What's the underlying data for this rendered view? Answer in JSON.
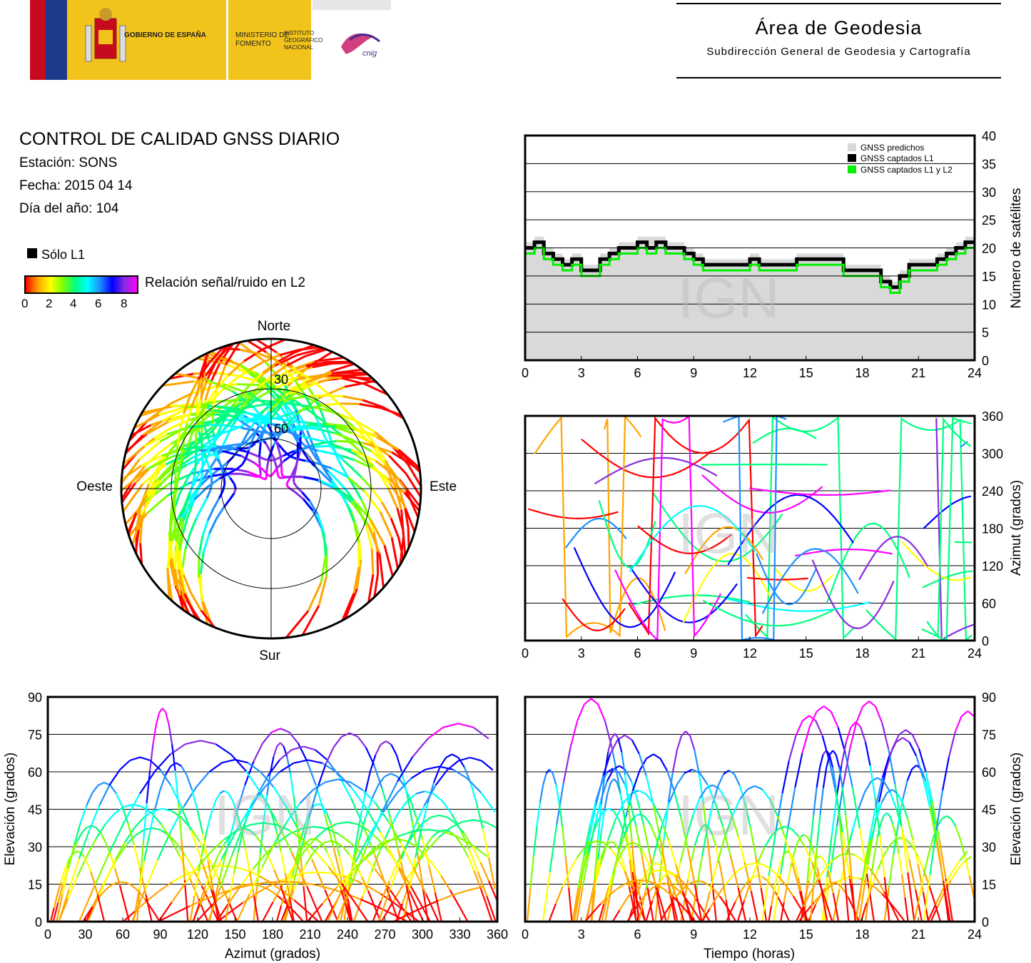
{
  "header": {
    "gobierno": "GOBIERNO DE ESPAÑA",
    "ministerio": "MINISTERIO DE FOMENTO",
    "instituto": "INSTITUTO GEOGRÁFICO NACIONAL",
    "cnig": "cnig",
    "area_title": "Área de Geodesia",
    "area_subtitle": "Subdirección General de Geodesia y Cartografía"
  },
  "info": {
    "title": "CONTROL DE CALIDAD GNSS DIARIO",
    "station": "Estación: SONS",
    "date": "Fecha: 2015 04 14",
    "doy": "Día del año: 104"
  },
  "legend": {
    "l1_only": "Sólo L1",
    "snr_label": "Relación señal/ruido en L2",
    "snr_ticks": [
      "0",
      "2",
      "4",
      "6",
      "8"
    ],
    "snr_colors": [
      "#ff0000",
      "#ffa500",
      "#ffff00",
      "#7fff00",
      "#00ff7f",
      "#00ffff",
      "#1e90ff",
      "#0000ff",
      "#8a2be2",
      "#ff00ff"
    ]
  },
  "watermark": "IGN",
  "chart_data": [
    {
      "type": "line",
      "panel": "satellites",
      "ylabel": "Número de satélites",
      "ylim": [
        0,
        40
      ],
      "xlim": [
        0,
        24
      ],
      "x_ticks": [
        "0",
        "3",
        "6",
        "9",
        "12",
        "15",
        "18",
        "21",
        "24"
      ],
      "y_ticks": [
        "0",
        "5",
        "10",
        "15",
        "20",
        "25",
        "30",
        "35",
        "40"
      ],
      "grid": true,
      "legend_position": "top-right",
      "legend": [
        "GNSS predichos",
        "GNSS captados L1",
        "GNSS captados L1 y L2"
      ],
      "series": [
        {
          "name": "GNSS predichos",
          "color": "#d9d9d9",
          "x": [
            0,
            0.5,
            1,
            1.5,
            2,
            2.5,
            3,
            3.5,
            4,
            4.5,
            5,
            5.5,
            6,
            6.5,
            7,
            7.5,
            8,
            8.5,
            9,
            9.5,
            10,
            10.5,
            11,
            11.5,
            12,
            12.5,
            13,
            13.5,
            14,
            14.5,
            15,
            15.5,
            16,
            16.5,
            17,
            17.5,
            18,
            18.5,
            19,
            19.5,
            20,
            20.5,
            21,
            21.5,
            22,
            22.5,
            23,
            23.5,
            24
          ],
          "y": [
            21,
            22,
            20,
            19,
            18,
            19,
            17,
            17,
            19,
            20,
            21,
            21,
            22,
            22,
            22,
            21,
            21,
            20,
            19,
            18,
            18,
            18,
            18,
            18,
            19,
            18,
            18,
            18,
            18,
            19,
            19,
            19,
            19,
            19,
            17,
            17,
            17,
            17,
            15,
            14,
            16,
            18,
            18,
            18,
            19,
            20,
            21,
            22,
            22
          ]
        },
        {
          "name": "GNSS captados L1",
          "color": "#000000",
          "x": [
            0,
            0.5,
            1,
            1.5,
            2,
            2.5,
            3,
            3.5,
            4,
            4.5,
            5,
            5.5,
            6,
            6.5,
            7,
            7.5,
            8,
            8.5,
            9,
            9.5,
            10,
            10.5,
            11,
            11.5,
            12,
            12.5,
            13,
            13.5,
            14,
            14.5,
            15,
            15.5,
            16,
            16.5,
            17,
            17.5,
            18,
            18.5,
            19,
            19.5,
            20,
            20.5,
            21,
            21.5,
            22,
            22.5,
            23,
            23.5,
            24
          ],
          "y": [
            20,
            21,
            19,
            18,
            17,
            18,
            16,
            16,
            18,
            19,
            20,
            20,
            21,
            20,
            21,
            20,
            20,
            19,
            18,
            17,
            17,
            17,
            17,
            17,
            18,
            17,
            17,
            17,
            17,
            18,
            18,
            18,
            18,
            18,
            16,
            16,
            16,
            16,
            14,
            13,
            15,
            17,
            17,
            17,
            18,
            19,
            20,
            21,
            21
          ]
        },
        {
          "name": "GNSS captados L1 y L2",
          "color": "#00ee00",
          "x": [
            0,
            0.5,
            1,
            1.5,
            2,
            2.5,
            3,
            3.5,
            4,
            4.5,
            5,
            5.5,
            6,
            6.5,
            7,
            7.5,
            8,
            8.5,
            9,
            9.5,
            10,
            10.5,
            11,
            11.5,
            12,
            12.5,
            13,
            13.5,
            14,
            14.5,
            15,
            15.5,
            16,
            16.5,
            17,
            17.5,
            18,
            18.5,
            19,
            19.5,
            20,
            20.5,
            21,
            21.5,
            22,
            22.5,
            23,
            23.5,
            24
          ],
          "y": [
            19,
            20,
            18,
            17,
            16,
            17,
            15,
            15,
            17,
            18,
            19,
            19,
            20,
            19,
            20,
            19,
            19,
            18,
            17,
            16,
            16,
            16,
            16,
            16,
            17,
            16,
            16,
            16,
            16,
            17,
            17,
            17,
            17,
            17,
            15,
            15,
            15,
            15,
            13,
            12,
            14,
            16,
            16,
            16,
            17,
            18,
            19,
            20,
            20
          ]
        }
      ]
    },
    {
      "type": "scatter",
      "panel": "azimuth-time",
      "ylabel": "Azimut (grados)",
      "ylim": [
        0,
        360
      ],
      "xlim": [
        0,
        24
      ],
      "x_ticks": [
        "0",
        "3",
        "6",
        "9",
        "12",
        "15",
        "18",
        "21",
        "24"
      ],
      "y_ticks": [
        "0",
        "60",
        "120",
        "180",
        "240",
        "300",
        "360"
      ],
      "grid": true
    },
    {
      "type": "scatter",
      "panel": "skyplot",
      "labels": {
        "north": "Norte",
        "south": "Sur",
        "west": "Oeste",
        "east": "Este"
      },
      "rings": [
        "30",
        "60"
      ]
    },
    {
      "type": "scatter",
      "panel": "elevation-azimuth",
      "xlabel": "Azimut (grados)",
      "ylabel": "Elevación (grados)",
      "xlim": [
        0,
        360
      ],
      "ylim": [
        0,
        90
      ],
      "x_ticks": [
        "0",
        "30",
        "60",
        "90",
        "120",
        "150",
        "180",
        "210",
        "240",
        "270",
        "300",
        "330",
        "360"
      ],
      "y_ticks": [
        "0",
        "15",
        "30",
        "45",
        "60",
        "75",
        "90"
      ],
      "grid": true
    },
    {
      "type": "scatter",
      "panel": "elevation-time",
      "xlabel": "Tiempo (horas)",
      "ylabel": "Elevación (grados)",
      "xlim": [
        0,
        24
      ],
      "ylim": [
        0,
        90
      ],
      "x_ticks": [
        "0",
        "3",
        "6",
        "9",
        "12",
        "15",
        "18",
        "21",
        "24"
      ],
      "y_ticks": [
        "0",
        "15",
        "30",
        "45",
        "60",
        "75",
        "90"
      ],
      "grid": true
    }
  ]
}
